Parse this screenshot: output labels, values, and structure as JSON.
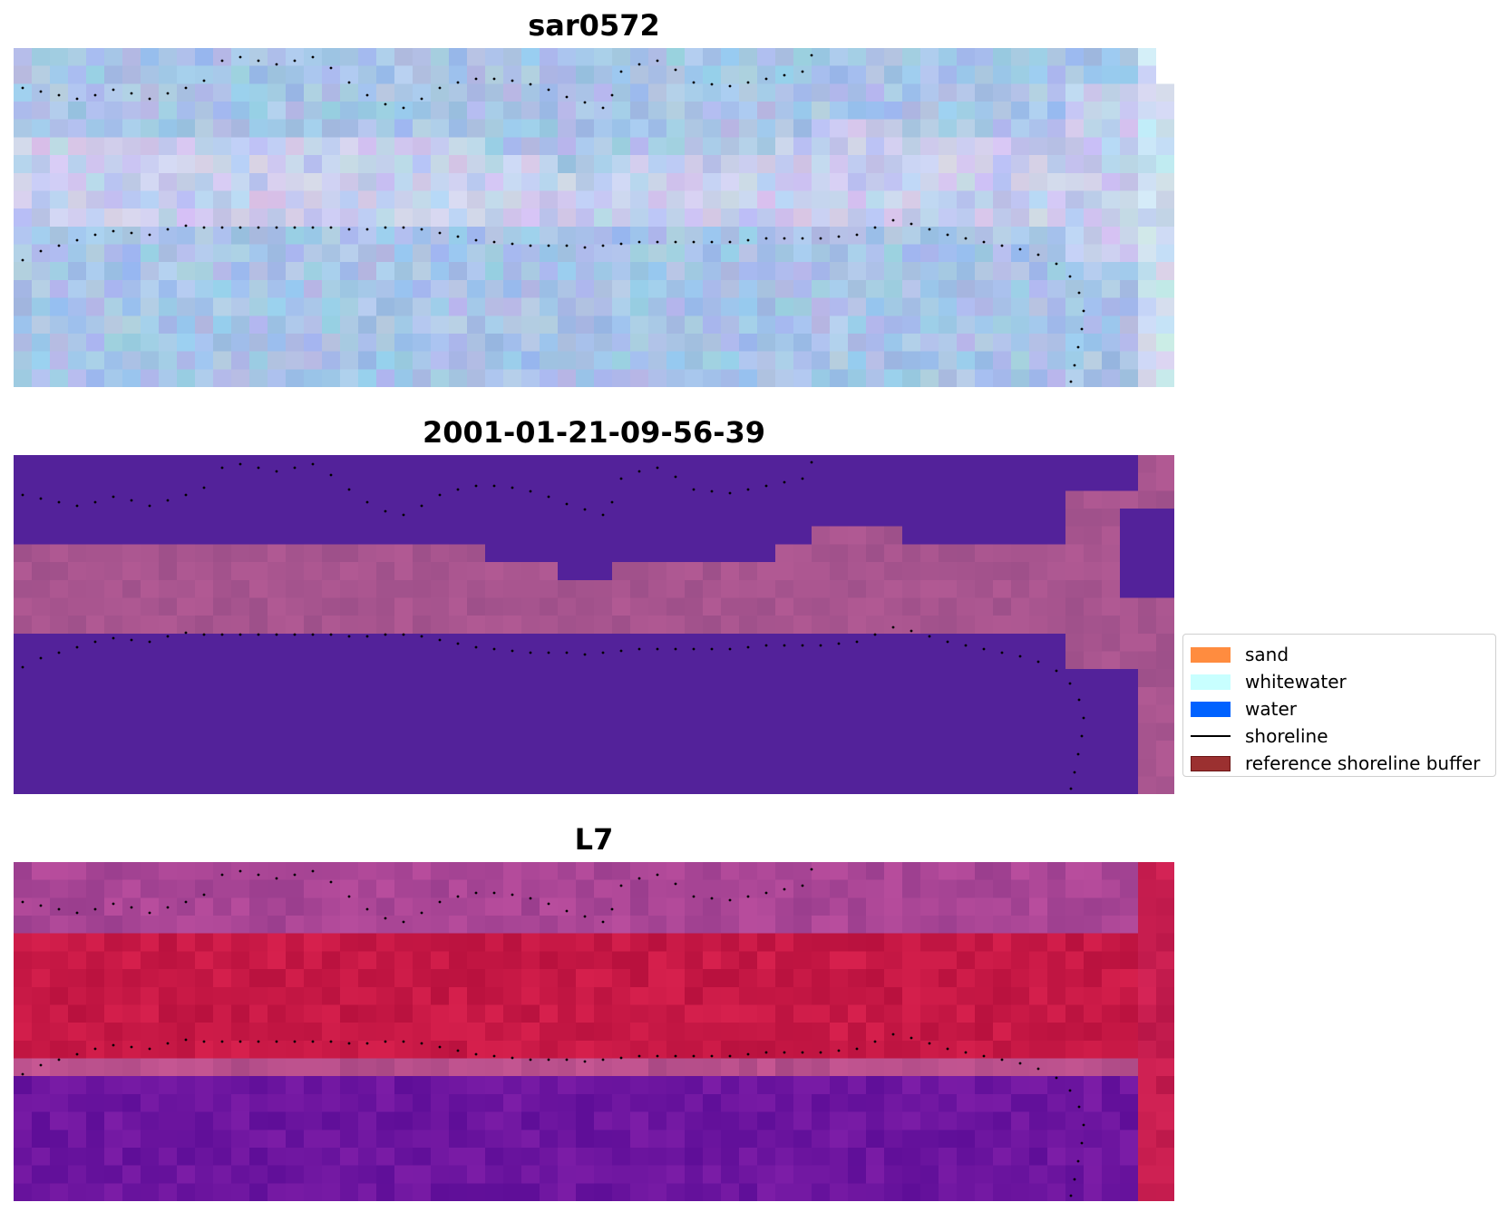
{
  "panels": [
    {
      "title": "sar0572",
      "kind": "rgb"
    },
    {
      "title": "2001-01-21-09-56-39",
      "kind": "classified"
    },
    {
      "title": "L7",
      "kind": "index"
    }
  ],
  "legend": {
    "items": [
      {
        "label": "sand",
        "color": "#ff8c3f",
        "style": "patch"
      },
      {
        "label": "whitewater",
        "color": "#c8ffff",
        "style": "patch"
      },
      {
        "label": "water",
        "color": "#0062ff",
        "style": "patch"
      },
      {
        "label": "shoreline",
        "color": "#000000",
        "style": "line"
      },
      {
        "label": "reference shoreline buffer",
        "color": "#9b3030",
        "style": "patch"
      }
    ]
  },
  "colors": {
    "classified_water": "#53229a",
    "classified_sand": "#a8558f",
    "index_high": "#c4103f",
    "index_low": "#6a12a0",
    "rgb_base": "#a8c4e8"
  }
}
